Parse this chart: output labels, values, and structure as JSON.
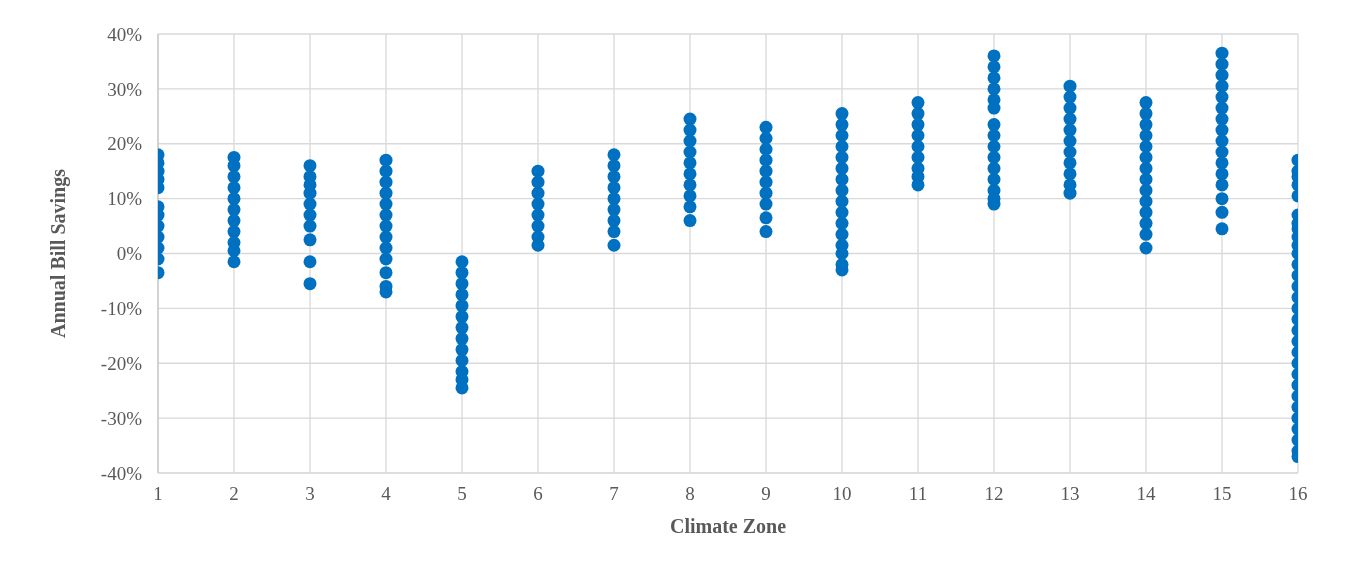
{
  "chart_data": {
    "type": "scatter",
    "xlabel": "Climate Zone",
    "ylabel": "Annual Bill Savings",
    "xlim": [
      1,
      16
    ],
    "xticks": [
      1,
      2,
      3,
      4,
      5,
      6,
      7,
      8,
      9,
      10,
      11,
      12,
      13,
      14,
      15,
      16
    ],
    "ylim": [
      -40,
      40
    ],
    "yticks": [
      {
        "value": -40,
        "label": "-40%"
      },
      {
        "value": -30,
        "label": "-30%"
      },
      {
        "value": -20,
        "label": "-20%"
      },
      {
        "value": -10,
        "label": "-10%"
      },
      {
        "value": 0,
        "label": "0%"
      },
      {
        "value": 10,
        "label": "10%"
      },
      {
        "value": 20,
        "label": "20%"
      },
      {
        "value": 30,
        "label": "30%"
      },
      {
        "value": 40,
        "label": "40%"
      }
    ],
    "grid": true,
    "marker": "circle",
    "series": [
      {
        "color": "#0070c0",
        "x": [
          1,
          1,
          1,
          1,
          1,
          1,
          1,
          1,
          1,
          1,
          1,
          1
        ],
        "values": [
          18,
          16.5,
          15,
          13.5,
          12,
          8.5,
          7,
          5,
          3,
          1,
          -1,
          -3.5
        ]
      },
      {
        "color": "#0070c0",
        "x": [
          2,
          2,
          2,
          2,
          2,
          2,
          2,
          2,
          2,
          2,
          2
        ],
        "values": [
          17.5,
          16,
          14,
          12,
          10,
          8,
          6,
          4,
          2,
          0.5,
          -1.5
        ]
      },
      {
        "color": "#0070c0",
        "x": [
          3,
          3,
          3,
          3,
          3,
          3,
          3,
          3,
          3,
          3
        ],
        "values": [
          16,
          14,
          12.5,
          11,
          9,
          7,
          5,
          2.5,
          -1.5,
          -5.5
        ]
      },
      {
        "color": "#0070c0",
        "x": [
          4,
          4,
          4,
          4,
          4,
          4,
          4,
          4,
          4,
          4,
          4,
          4,
          4
        ],
        "values": [
          17,
          15,
          13,
          11,
          9,
          7,
          5,
          3,
          1,
          -1,
          -3.5,
          -6,
          -7
        ]
      },
      {
        "color": "#0070c0",
        "x": [
          5,
          5,
          5,
          5,
          5,
          5,
          5,
          5,
          5,
          5,
          5,
          5,
          5
        ],
        "values": [
          -1.5,
          -3.5,
          -5.5,
          -7.5,
          -9.5,
          -11.5,
          -13.5,
          -15.5,
          -17.5,
          -19.5,
          -21.5,
          -23,
          -24.5
        ]
      },
      {
        "color": "#0070c0",
        "x": [
          6,
          6,
          6,
          6,
          6,
          6,
          6,
          6
        ],
        "values": [
          15,
          13,
          11,
          9,
          7,
          5,
          3,
          1.5
        ]
      },
      {
        "color": "#0070c0",
        "x": [
          7,
          7,
          7,
          7,
          7,
          7,
          7,
          7,
          7
        ],
        "values": [
          18,
          16,
          14,
          12,
          10,
          8,
          6,
          4,
          1.5
        ]
      },
      {
        "color": "#0070c0",
        "x": [
          8,
          8,
          8,
          8,
          8,
          8,
          8,
          8,
          8,
          8
        ],
        "values": [
          24.5,
          22.5,
          20.5,
          18.5,
          16.5,
          14.5,
          12.5,
          10.5,
          8.5,
          6
        ]
      },
      {
        "color": "#0070c0",
        "x": [
          9,
          9,
          9,
          9,
          9,
          9,
          9,
          9,
          9,
          9
        ],
        "values": [
          23,
          21,
          19,
          17,
          15,
          13,
          11,
          9,
          6.5,
          4
        ]
      },
      {
        "color": "#0070c0",
        "x": [
          10,
          10,
          10,
          10,
          10,
          10,
          10,
          10,
          10,
          10,
          10,
          10,
          10,
          10,
          10,
          10
        ],
        "values": [
          25.5,
          23.5,
          21.5,
          19.5,
          17.5,
          15.5,
          13.5,
          11.5,
          9.5,
          7.5,
          5.5,
          3.5,
          1.5,
          0,
          -2,
          -3
        ]
      },
      {
        "color": "#0070c0",
        "x": [
          11,
          11,
          11,
          11,
          11,
          11,
          11,
          11,
          11
        ],
        "values": [
          27.5,
          25.5,
          23.5,
          21.5,
          19.5,
          17.5,
          15.5,
          14,
          12.5
        ]
      },
      {
        "color": "#0070c0",
        "x": [
          12,
          12,
          12,
          12,
          12,
          12,
          12,
          12,
          12,
          12,
          12,
          12,
          12,
          12,
          12
        ],
        "values": [
          36,
          34,
          32,
          30,
          28,
          26.5,
          23.5,
          21.5,
          19.5,
          17.5,
          15.5,
          13.5,
          11.5,
          10,
          9
        ]
      },
      {
        "color": "#0070c0",
        "x": [
          13,
          13,
          13,
          13,
          13,
          13,
          13,
          13,
          13,
          13,
          13
        ],
        "values": [
          30.5,
          28.5,
          26.5,
          24.5,
          22.5,
          20.5,
          18.5,
          16.5,
          14.5,
          12.5,
          11
        ]
      },
      {
        "color": "#0070c0",
        "x": [
          14,
          14,
          14,
          14,
          14,
          14,
          14,
          14,
          14,
          14,
          14,
          14,
          14,
          14
        ],
        "values": [
          27.5,
          25.5,
          23.5,
          21.5,
          19.5,
          17.5,
          15.5,
          13.5,
          11.5,
          9.5,
          7.5,
          5.5,
          3.5,
          1
        ]
      },
      {
        "color": "#0070c0",
        "x": [
          15,
          15,
          15,
          15,
          15,
          15,
          15,
          15,
          15,
          15,
          15,
          15,
          15,
          15,
          15,
          15
        ],
        "values": [
          36.5,
          34.5,
          32.5,
          30.5,
          28.5,
          26.5,
          24.5,
          22.5,
          20.5,
          18.5,
          16.5,
          14.5,
          12.5,
          10,
          7.5,
          4.5
        ]
      },
      {
        "color": "#0070c0",
        "x": [
          16,
          16,
          16,
          16,
          16,
          16,
          16,
          16,
          16,
          16,
          16,
          16,
          16,
          16,
          16,
          16,
          16,
          16,
          16,
          16,
          16,
          16,
          16,
          16,
          16,
          16,
          16,
          16,
          16,
          16
        ],
        "values": [
          17,
          15,
          14,
          12.5,
          10.5,
          7,
          5.5,
          4.5,
          3,
          1.5,
          0,
          -2,
          -4,
          -6,
          -8,
          -10,
          -12,
          -14,
          -16,
          -18,
          -20,
          -22,
          -24,
          -26,
          -28,
          -30,
          -32,
          -34,
          -36,
          -37
        ]
      }
    ]
  }
}
